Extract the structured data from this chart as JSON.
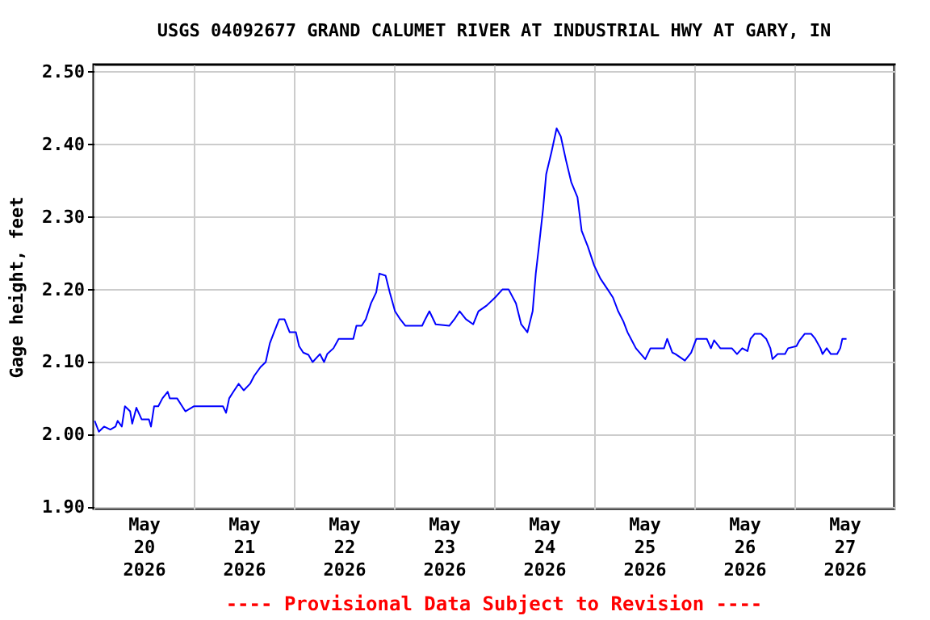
{
  "chart_data": {
    "type": "line",
    "title": "USGS 04092677 GRAND CALUMET RIVER AT INDUSTRIAL HWY AT GARY, IN",
    "ylabel": "Gage height, feet",
    "annotations": [
      "---- Provisional Data Subject to Revision ----"
    ],
    "x": [
      "2026-05-20T00:15",
      "2026-05-20T01:15",
      "2026-05-20T02:30",
      "2026-05-20T04:00",
      "2026-05-20T05:15",
      "2026-05-20T05:45",
      "2026-05-20T06:45",
      "2026-05-20T07:30",
      "2026-05-20T08:45",
      "2026-05-20T09:15",
      "2026-05-20T10:15",
      "2026-05-20T11:30",
      "2026-05-20T13:15",
      "2026-05-20T13:45",
      "2026-05-20T14:30",
      "2026-05-20T15:30",
      "2026-05-20T16:30",
      "2026-05-20T17:45",
      "2026-05-20T18:15",
      "2026-05-20T20:00",
      "2026-05-20T21:00",
      "2026-05-20T22:00",
      "2026-05-21T00:00",
      "2026-05-21T07:00",
      "2026-05-21T07:45",
      "2026-05-21T08:30",
      "2026-05-21T09:30",
      "2026-05-21T10:45",
      "2026-05-21T12:00",
      "2026-05-21T13:30",
      "2026-05-21T14:30",
      "2026-05-21T16:00",
      "2026-05-21T17:15",
      "2026-05-21T18:15",
      "2026-05-21T19:15",
      "2026-05-21T20:30",
      "2026-05-21T21:45",
      "2026-05-21T23:00",
      "2026-05-22T00:30",
      "2026-05-22T01:15",
      "2026-05-22T02:15",
      "2026-05-22T03:30",
      "2026-05-22T04:30",
      "2026-05-22T06:15",
      "2026-05-22T07:15",
      "2026-05-22T08:00",
      "2026-05-22T09:30",
      "2026-05-22T10:45",
      "2026-05-22T14:15",
      "2026-05-22T15:00",
      "2026-05-22T16:15",
      "2026-05-22T17:15",
      "2026-05-22T18:30",
      "2026-05-22T19:45",
      "2026-05-22T20:30",
      "2026-05-22T22:00",
      "2026-05-22T23:00",
      "2026-05-23T00:15",
      "2026-05-23T01:30",
      "2026-05-23T02:45",
      "2026-05-23T06:45",
      "2026-05-23T07:30",
      "2026-05-23T08:30",
      "2026-05-23T10:00",
      "2026-05-23T13:15",
      "2026-05-23T14:30",
      "2026-05-23T15:45",
      "2026-05-23T17:15",
      "2026-05-23T19:00",
      "2026-05-23T20:15",
      "2026-05-23T22:15",
      "2026-05-24T00:15",
      "2026-05-24T02:00",
      "2026-05-24T03:30",
      "2026-05-24T05:15",
      "2026-05-24T06:30",
      "2026-05-24T08:00",
      "2026-05-24T09:15",
      "2026-05-24T10:00",
      "2026-05-24T10:45",
      "2026-05-24T11:45",
      "2026-05-24T12:30",
      "2026-05-24T13:45",
      "2026-05-24T15:00",
      "2026-05-24T16:00",
      "2026-05-24T17:15",
      "2026-05-24T18:30",
      "2026-05-24T20:00",
      "2026-05-24T21:00",
      "2026-05-24T22:30",
      "2026-05-25T00:00",
      "2026-05-25T01:30",
      "2026-05-25T03:15",
      "2026-05-25T04:30",
      "2026-05-25T05:45",
      "2026-05-25T07:00",
      "2026-05-25T08:00",
      "2026-05-25T09:00",
      "2026-05-25T10:00",
      "2026-05-25T12:15",
      "2026-05-25T13:30",
      "2026-05-25T16:45",
      "2026-05-25T17:30",
      "2026-05-25T18:45",
      "2026-05-25T19:30",
      "2026-05-25T21:45",
      "2026-05-25T23:15",
      "2026-05-26T00:30",
      "2026-05-26T03:00",
      "2026-05-26T04:00",
      "2026-05-26T04:45",
      "2026-05-26T06:15",
      "2026-05-26T09:00",
      "2026-05-26T10:15",
      "2026-05-26T11:30",
      "2026-05-26T12:45",
      "2026-05-26T13:30",
      "2026-05-26T14:30",
      "2026-05-26T16:00",
      "2026-05-26T17:15",
      "2026-05-26T18:15",
      "2026-05-26T18:45",
      "2026-05-26T20:00",
      "2026-05-26T21:45",
      "2026-05-26T22:30",
      "2026-05-27T00:30",
      "2026-05-27T01:15",
      "2026-05-27T02:30",
      "2026-05-27T04:00",
      "2026-05-27T05:00",
      "2026-05-27T06:15",
      "2026-05-27T06:45",
      "2026-05-27T07:45",
      "2026-05-27T08:45",
      "2026-05-27T10:15",
      "2026-05-27T11:00",
      "2026-05-27T11:30",
      "2026-05-27T12:30"
    ],
    "series": [
      {
        "color": "#0000ff",
        "values": [
          2.019,
          2.004,
          2.011,
          2.007,
          2.011,
          2.019,
          2.011,
          2.039,
          2.032,
          2.015,
          2.037,
          2.021,
          2.021,
          2.011,
          2.039,
          2.039,
          2.05,
          2.059,
          2.05,
          2.05,
          2.041,
          2.032,
          2.039,
          2.039,
          2.03,
          2.05,
          2.059,
          2.07,
          2.061,
          2.07,
          2.081,
          2.093,
          2.1,
          2.126,
          2.141,
          2.159,
          2.159,
          2.141,
          2.141,
          2.122,
          2.113,
          2.11,
          2.1,
          2.111,
          2.1,
          2.111,
          2.119,
          2.132,
          2.132,
          2.15,
          2.15,
          2.159,
          2.181,
          2.196,
          2.222,
          2.219,
          2.196,
          2.17,
          2.159,
          2.15,
          2.15,
          2.159,
          2.17,
          2.152,
          2.15,
          2.159,
          2.17,
          2.159,
          2.152,
          2.17,
          2.178,
          2.189,
          2.2,
          2.2,
          2.181,
          2.152,
          2.141,
          2.17,
          2.222,
          2.259,
          2.311,
          2.359,
          2.389,
          2.422,
          2.411,
          2.378,
          2.348,
          2.327,
          2.281,
          2.259,
          2.233,
          2.215,
          2.2,
          2.189,
          2.17,
          2.156,
          2.141,
          2.13,
          2.119,
          2.104,
          2.119,
          2.119,
          2.132,
          2.113,
          2.111,
          2.102,
          2.113,
          2.132,
          2.132,
          2.119,
          2.13,
          2.119,
          2.119,
          2.111,
          2.119,
          2.115,
          2.132,
          2.139,
          2.139,
          2.132,
          2.119,
          2.104,
          2.111,
          2.111,
          2.119,
          2.122,
          2.13,
          2.139,
          2.139,
          2.132,
          2.119,
          2.111,
          2.119,
          2.111,
          2.111,
          2.119,
          2.132,
          2.132
        ]
      }
    ],
    "xlim": [
      "2026-05-20T00:00",
      "2026-05-28T00:00"
    ],
    "xticks": [
      {
        "value": "2026-05-20T00:00",
        "label": null
      },
      {
        "value": "2026-05-20T12:00",
        "label": "May\n20\n2026"
      },
      {
        "value": "2026-05-21T00:00",
        "label": null
      },
      {
        "value": "2026-05-21T12:00",
        "label": "May\n21\n2026"
      },
      {
        "value": "2026-05-22T00:00",
        "label": null
      },
      {
        "value": "2026-05-22T12:00",
        "label": "May\n22\n2026"
      },
      {
        "value": "2026-05-23T00:00",
        "label": null
      },
      {
        "value": "2026-05-23T12:00",
        "label": "May\n23\n2026"
      },
      {
        "value": "2026-05-24T00:00",
        "label": null
      },
      {
        "value": "2026-05-24T12:00",
        "label": "May\n24\n2026"
      },
      {
        "value": "2026-05-25T00:00",
        "label": null
      },
      {
        "value": "2026-05-25T12:00",
        "label": "May\n25\n2026"
      },
      {
        "value": "2026-05-26T00:00",
        "label": null
      },
      {
        "value": "2026-05-26T12:00",
        "label": "May\n26\n2026"
      },
      {
        "value": "2026-05-27T00:00",
        "label": null
      },
      {
        "value": "2026-05-27T12:00",
        "label": "May\n27\n2026"
      },
      {
        "value": "2026-05-28T00:00",
        "label": null
      }
    ],
    "ylim": [
      1.898,
      2.51
    ],
    "yticks": [
      {
        "value": 1.9,
        "label": "1.90"
      },
      {
        "value": 2.0,
        "label": "2.00"
      },
      {
        "value": 2.1,
        "label": "2.10"
      },
      {
        "value": 2.2,
        "label": "2.20"
      },
      {
        "value": 2.3,
        "label": "2.30"
      },
      {
        "value": 2.4,
        "label": "2.40"
      },
      {
        "value": 2.5,
        "label": "2.50"
      }
    ],
    "grid": true,
    "marker": "none",
    "line_style": "solid"
  }
}
